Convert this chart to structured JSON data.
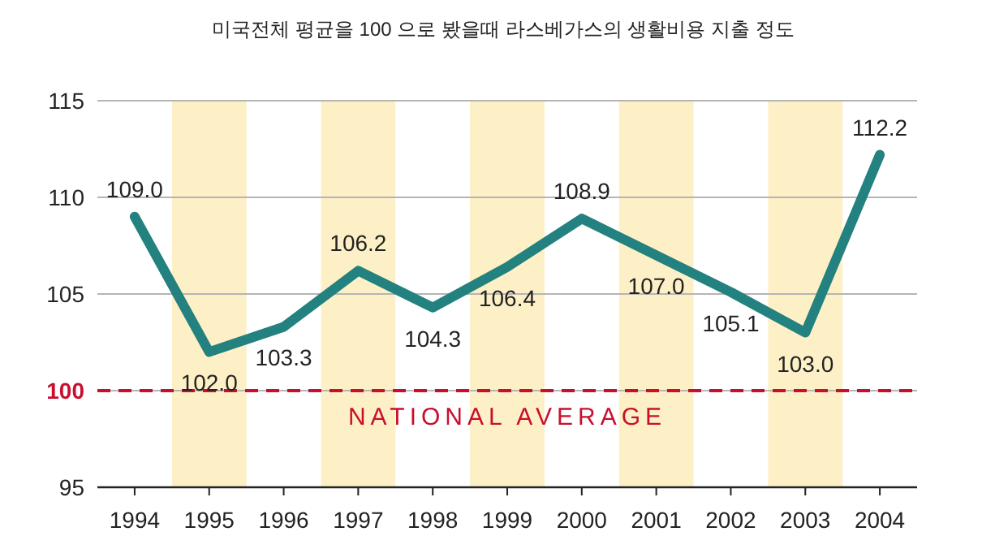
{
  "chart_data": {
    "type": "line",
    "title": "미국전체 평균을 100 으로 봤을때 라스베가스의 생활비용 지출 정도",
    "x": [
      1994,
      1995,
      1996,
      1997,
      1998,
      1999,
      2000,
      2001,
      2002,
      2003,
      2004
    ],
    "values": [
      109.0,
      102.0,
      103.3,
      106.2,
      104.3,
      106.4,
      108.9,
      107.0,
      105.1,
      103.0,
      112.2
    ],
    "value_labels": [
      "109.0",
      "102.0",
      "103.3",
      "106.2",
      "104.3",
      "106.4",
      "108.9",
      "107.0",
      "105.1",
      "103.0",
      "112.2"
    ],
    "color": "#23817f",
    "marker": "none",
    "line_style": "solid",
    "xlim": [
      1993.5,
      2004.5
    ],
    "xticks": [
      1994,
      1995,
      1996,
      1997,
      1998,
      1999,
      2000,
      2001,
      2002,
      2003,
      2004
    ],
    "ylim": [
      95,
      115
    ],
    "yticks": [
      95,
      100,
      105,
      110,
      115
    ],
    "grid": "y",
    "ref_lines": [
      {
        "axis": "y",
        "value": 100,
        "label": "NATIONAL AVERAGE",
        "color": "#c8102e",
        "line_style": "dashed"
      }
    ],
    "bands": [
      {
        "axis": "x",
        "from": 1994.5,
        "to": 1995.5,
        "color": "#fdf0c6"
      },
      {
        "axis": "x",
        "from": 1996.5,
        "to": 1997.5,
        "color": "#fdf0c6"
      },
      {
        "axis": "x",
        "from": 1998.5,
        "to": 1999.5,
        "color": "#fdf0c6"
      },
      {
        "axis": "x",
        "from": 2000.5,
        "to": 2001.5,
        "color": "#fdf0c6"
      },
      {
        "axis": "x",
        "from": 2002.5,
        "to": 2003.5,
        "color": "#fdf0c6"
      }
    ]
  }
}
